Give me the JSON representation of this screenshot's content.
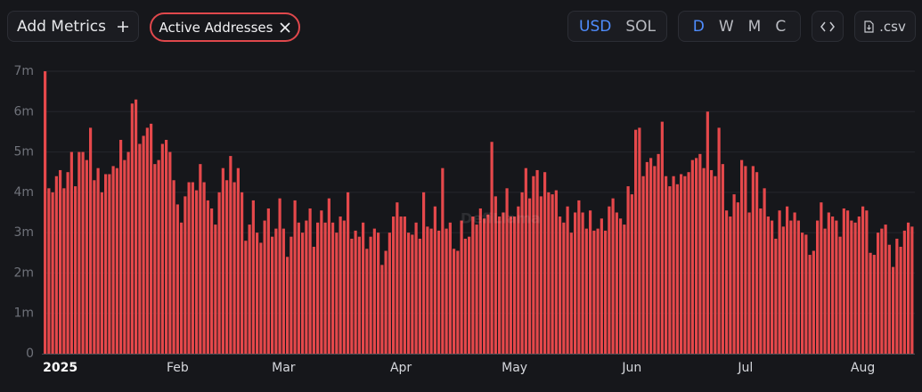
{
  "toolbar": {
    "add_metrics": "Add Metrics",
    "metric_pill": "Active Addresses",
    "currency": [
      "USD",
      "SOL"
    ],
    "active_currency": 0,
    "periods": [
      "D",
      "W",
      "M",
      "C"
    ],
    "active_period": 0,
    "csv": ".csv"
  },
  "chart_data": {
    "type": "bar",
    "watermark": "DefiLlama",
    "color": "#e5484b",
    "ylim": [
      0,
      7000000
    ],
    "yticks": [
      0,
      {
        "value": 1000000,
        "label": "1m"
      },
      {
        "value": 2000000,
        "label": "2m"
      },
      {
        "value": 3000000,
        "label": "3m"
      },
      {
        "value": 4000000,
        "label": "4m"
      },
      {
        "value": 5000000,
        "label": "5m"
      },
      {
        "value": 6000000,
        "label": "6m"
      },
      {
        "value": 7000000,
        "label": "7m"
      }
    ],
    "grid": true,
    "categories": [
      null,
      null,
      null,
      null,
      "2025",
      null,
      null,
      null,
      null,
      null,
      null,
      null,
      null,
      null,
      null,
      null,
      null,
      null,
      null,
      null,
      null,
      null,
      null,
      null,
      null,
      null,
      null,
      null,
      null,
      null,
      null,
      null,
      null,
      null,
      null,
      "Feb",
      null,
      null,
      null,
      null,
      null,
      null,
      null,
      null,
      null,
      null,
      null,
      null,
      null,
      null,
      null,
      null,
      null,
      null,
      null,
      null,
      null,
      null,
      null,
      null,
      null,
      null,
      null,
      "Mar",
      null,
      null,
      null,
      null,
      null,
      null,
      null,
      null,
      null,
      null,
      null,
      null,
      null,
      null,
      null,
      null,
      null,
      null,
      null,
      null,
      null,
      null,
      null,
      null,
      null,
      null,
      null,
      null,
      null,
      null,
      "Apr",
      null,
      null,
      null,
      null,
      null,
      null,
      null,
      null,
      null,
      null,
      null,
      null,
      null,
      null,
      null,
      null,
      null,
      null,
      null,
      null,
      null,
      null,
      null,
      null,
      null,
      null,
      null,
      null,
      null,
      "May",
      null,
      null,
      null,
      null,
      null,
      null,
      null,
      null,
      null,
      null,
      null,
      null,
      null,
      null,
      null,
      null,
      null,
      null,
      null,
      null,
      null,
      null,
      null,
      null,
      null,
      null,
      null,
      null,
      null,
      null,
      "Jun",
      null,
      null,
      null,
      null,
      null,
      null,
      null,
      null,
      null,
      null,
      null,
      null,
      null,
      null,
      null,
      null,
      null,
      null,
      null,
      null,
      null,
      null,
      null,
      null,
      null,
      null,
      null,
      null,
      null,
      "Jul",
      null,
      null,
      null,
      null,
      null,
      null,
      null,
      null,
      null,
      null,
      null,
      null,
      null,
      null,
      null,
      null,
      null,
      null,
      null,
      null,
      null,
      null,
      null,
      null,
      null,
      null,
      null,
      null,
      null,
      null,
      "Aug",
      null,
      null,
      null,
      null,
      null,
      null,
      null,
      null,
      null,
      null,
      null,
      null,
      null
    ],
    "values": [
      7000000,
      4100000,
      4000000,
      4400000,
      4550000,
      4100000,
      4500000,
      5000000,
      4150000,
      5000000,
      5000000,
      4800000,
      5600000,
      4300000,
      4600000,
      4000000,
      4450000,
      4450000,
      4650000,
      4600000,
      5300000,
      4800000,
      5000000,
      6200000,
      6300000,
      5200000,
      5400000,
      5600000,
      5700000,
      4700000,
      4800000,
      5200000,
      5300000,
      5000000,
      4300000,
      3700000,
      3250000,
      3900000,
      4250000,
      4250000,
      4050000,
      4700000,
      4250000,
      3800000,
      3600000,
      3200000,
      4000000,
      4600000,
      4300000,
      4900000,
      4250000,
      4600000,
      4000000,
      2800000,
      3200000,
      3800000,
      3000000,
      2750000,
      3300000,
      3600000,
      2900000,
      3100000,
      3850000,
      3100000,
      2400000,
      2900000,
      3800000,
      3250000,
      3000000,
      3300000,
      3600000,
      2650000,
      3250000,
      3550000,
      3250000,
      3850000,
      3250000,
      3000000,
      3400000,
      3300000,
      4000000,
      2850000,
      3050000,
      2900000,
      3250000,
      2600000,
      2900000,
      3100000,
      3000000,
      2200000,
      2550000,
      3000000,
      3400000,
      3750000,
      3400000,
      3400000,
      3000000,
      2950000,
      3250000,
      2850000,
      4000000,
      3150000,
      3100000,
      3650000,
      3050000,
      4600000,
      3100000,
      3250000,
      2600000,
      2550000,
      3300000,
      2850000,
      2900000,
      3400000,
      3200000,
      3600000,
      3350000,
      3450000,
      5250000,
      3900000,
      3400000,
      3500000,
      4100000,
      3400000,
      3400000,
      3650000,
      4000000,
      4600000,
      3850000,
      4400000,
      4550000,
      3900000,
      4500000,
      4000000,
      3950000,
      4050000,
      3400000,
      3250000,
      3650000,
      3000000,
      3500000,
      3800000,
      3500000,
      3100000,
      3550000,
      3050000,
      3100000,
      3350000,
      3050000,
      3650000,
      3850000,
      3500000,
      3350000,
      3200000,
      4150000,
      3950000,
      5550000,
      5600000,
      4400000,
      4750000,
      4850000,
      4650000,
      4950000,
      5750000,
      4400000,
      4150000,
      4400000,
      4200000,
      4450000,
      4400000,
      4500000,
      4800000,
      4850000,
      4950000,
      4600000,
      6000000,
      4550000,
      4400000,
      5600000,
      4700000,
      3550000,
      3400000,
      3950000,
      3750000,
      4800000,
      4650000,
      3500000,
      4650000,
      4500000,
      3600000,
      4100000,
      3400000,
      3300000,
      2850000,
      3550000,
      3150000,
      3650000,
      3300000,
      3500000,
      3300000,
      3000000,
      2950000,
      2450000,
      2550000,
      3300000,
      3750000,
      3100000,
      3500000,
      3400000,
      3300000,
      2900000,
      3600000,
      3550000,
      3300000,
      3250000,
      3400000,
      3650000,
      3550000,
      2500000,
      2450000,
      3000000,
      3100000,
      3200000,
      2700000,
      2150000,
      2850000,
      2650000,
      3050000,
      3250000,
      3150000
    ]
  }
}
